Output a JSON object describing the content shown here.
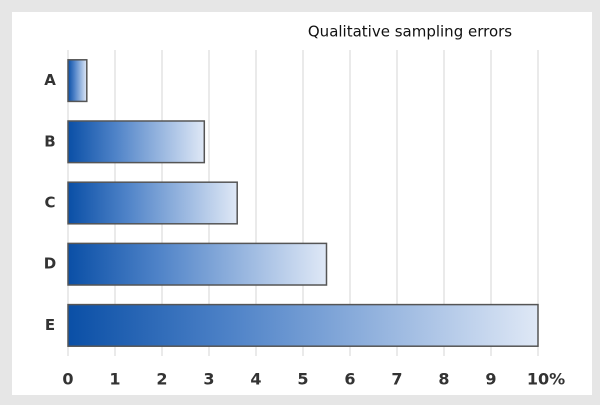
{
  "chart_data": {
    "type": "hbar",
    "title": "Qualitative sampling errors",
    "categories": [
      "A",
      "B",
      "C",
      "D",
      "E"
    ],
    "values": [
      0.4,
      2.9,
      3.6,
      5.5,
      10.0
    ],
    "xlim": [
      0,
      10
    ],
    "xticks": [
      0,
      1,
      2,
      3,
      4,
      5,
      6,
      7,
      8,
      9,
      {
        "value": 10,
        "label": "10%"
      }
    ],
    "grid": true
  }
}
